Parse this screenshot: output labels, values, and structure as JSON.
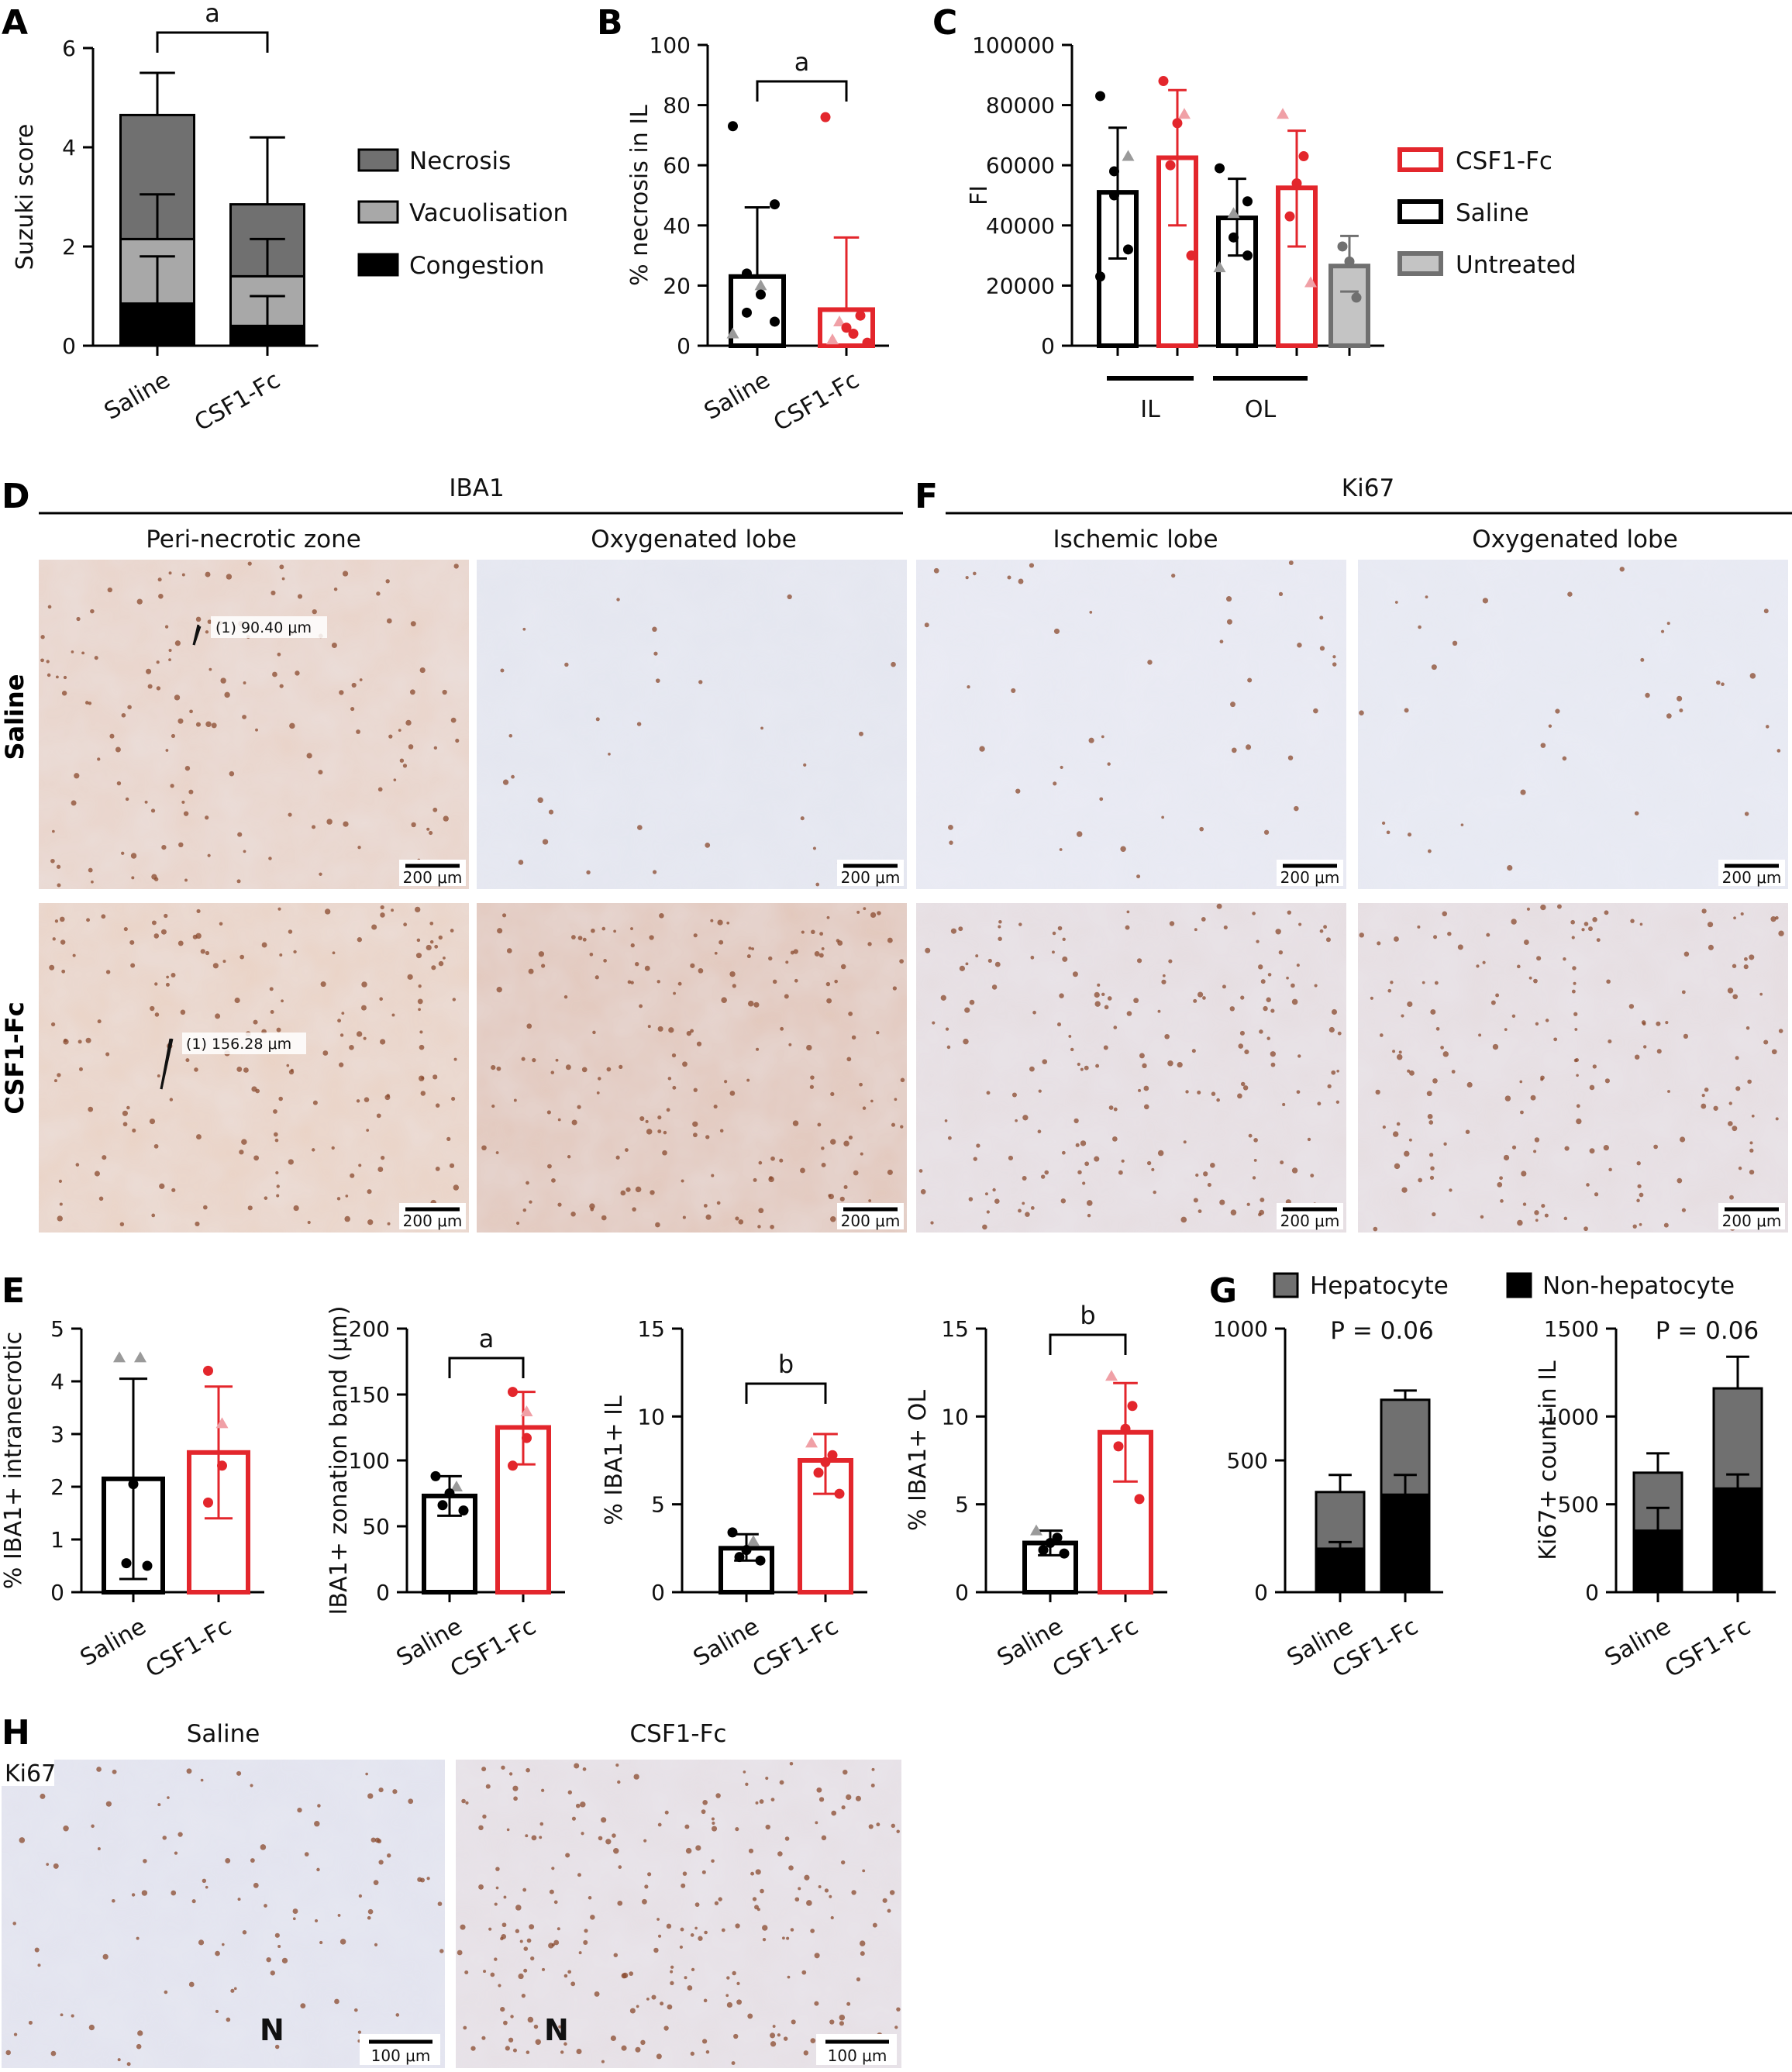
{
  "panel_labels": {
    "A": "A",
    "B": "B",
    "C": "C",
    "D": "D",
    "E": "E",
    "F": "F",
    "G": "G",
    "H": "H"
  },
  "colors": {
    "black": "#000000",
    "red": "#e3262c",
    "dark_gray": "#707070",
    "light_gray": "#a8a8a8",
    "untreated": "#c4c4c4",
    "grey_point": "#9a9a9a",
    "pink_point": "#f0a0a6"
  },
  "panel_d": {
    "title": "IBA1",
    "col_headers": [
      "Peri-necrotic zone",
      "Oxygenated lobe"
    ],
    "row_labels": [
      "Saline",
      "CSF1-Fc"
    ],
    "measurements": [
      "(1) 90.40 μm",
      "(1) 156.28 μm"
    ],
    "scale_bar": "200 μm",
    "stain_levels": [
      [
        0.55,
        0.12
      ],
      [
        0.7,
        0.75
      ]
    ]
  },
  "panel_f": {
    "title": "Ki67",
    "col_headers": [
      "Ischemic lobe",
      "Oxygenated lobe"
    ],
    "scale_bar": "200 μm",
    "stain_levels": [
      [
        0.18,
        0.14
      ],
      [
        0.75,
        0.72
      ]
    ]
  },
  "panel_h": {
    "col_headers": [
      "Saline",
      "CSF1-Fc"
    ],
    "stain_label": "Ki67",
    "necrosis_marker": "N",
    "scale_bar": "100 μm",
    "stain_levels": [
      0.25,
      0.6
    ]
  },
  "chart_data": [
    {
      "id": "A",
      "type": "bar",
      "stacked": true,
      "categories": [
        "Saline",
        "CSF1-Fc"
      ],
      "ylabel": "Suzuki score",
      "ylim": [
        0,
        6
      ],
      "yticks": [
        0,
        2,
        4,
        6
      ],
      "series": [
        {
          "name": "Congestion",
          "color": "#000000",
          "values": [
            0.85,
            0.4
          ],
          "err": [
            1.8,
            1.0
          ]
        },
        {
          "name": "Vacuolisation",
          "color": "#a8a8a8",
          "values": [
            1.3,
            1.0
          ],
          "err": [
            3.05,
            2.15
          ]
        },
        {
          "name": "Necrosis",
          "color": "#707070",
          "values": [
            2.5,
            1.45
          ],
          "err": [
            5.5,
            4.2
          ]
        }
      ],
      "legend_order": [
        "Necrosis",
        "Vacuolisation",
        "Congestion"
      ],
      "significance": [
        {
          "label": "a",
          "from": 0,
          "to": 1
        }
      ]
    },
    {
      "id": "B",
      "type": "bar",
      "categories": [
        "Saline",
        "CSF1-Fc"
      ],
      "ylabel": "% necrosis in IL",
      "ylim": [
        0,
        100
      ],
      "yticks": [
        0,
        20,
        40,
        60,
        80,
        100
      ],
      "values": [
        23,
        12
      ],
      "err_upper": [
        46,
        36
      ],
      "edge_colors": [
        "#000000",
        "#e3262c"
      ],
      "points": [
        [
          {
            "y": 73,
            "c": "#000000"
          },
          {
            "y": 47,
            "c": "#000000"
          },
          {
            "y": 24,
            "c": "#000000"
          },
          {
            "y": 20,
            "c": "#9a9a9a",
            "shape": "tri"
          },
          {
            "y": 17,
            "c": "#000000"
          },
          {
            "y": 11,
            "c": "#000000"
          },
          {
            "y": 8,
            "c": "#000000"
          },
          {
            "y": 4,
            "c": "#9a9a9a",
            "shape": "tri"
          }
        ],
        [
          {
            "y": 76,
            "c": "#e3262c"
          },
          {
            "y": 10,
            "c": "#e3262c"
          },
          {
            "y": 8,
            "c": "#f0a0a6",
            "shape": "tri"
          },
          {
            "y": 6,
            "c": "#e3262c"
          },
          {
            "y": 4,
            "c": "#e3262c"
          },
          {
            "y": 2,
            "c": "#f0a0a6",
            "shape": "tri"
          },
          {
            "y": 1,
            "c": "#e3262c"
          }
        ]
      ],
      "significance": [
        {
          "label": "a",
          "from": 0,
          "to": 1
        }
      ]
    },
    {
      "id": "C",
      "type": "bar",
      "categories": [
        "IL Saline",
        "IL CSF1-Fc",
        "OL Saline",
        "OL CSF1-Fc",
        "Untreated"
      ],
      "group_labels": [
        "IL",
        "OL"
      ],
      "ylabel": "FI",
      "ylim": [
        0,
        100000
      ],
      "yticks": [
        0,
        20000,
        40000,
        60000,
        80000,
        100000
      ],
      "values": [
        51000,
        62500,
        42500,
        52500,
        26500
      ],
      "err": [
        [
          29000,
          72500
        ],
        [
          40000,
          85000
        ],
        [
          30000,
          55500
        ],
        [
          33000,
          71500
        ],
        [
          18000,
          36500
        ]
      ],
      "edge_colors": [
        "#000000",
        "#e3262c",
        "#000000",
        "#e3262c",
        "#707070"
      ],
      "fill_colors": [
        "#ffffff",
        "#ffffff",
        "#ffffff",
        "#ffffff",
        "#c4c4c4"
      ],
      "legend": [
        {
          "name": "CSF1-Fc",
          "edge": "#e3262c",
          "fill": "#ffffff"
        },
        {
          "name": "Saline",
          "edge": "#000000",
          "fill": "#ffffff"
        },
        {
          "name": "Untreated",
          "edge": "#707070",
          "fill": "#c4c4c4"
        }
      ],
      "points": [
        [
          {
            "y": 83000,
            "c": "#000000"
          },
          {
            "y": 63000,
            "c": "#9a9a9a",
            "shape": "tri"
          },
          {
            "y": 58000,
            "c": "#000000"
          },
          {
            "y": 50000,
            "c": "#000000"
          },
          {
            "y": 32000,
            "c": "#000000"
          },
          {
            "y": 23000,
            "c": "#000000"
          }
        ],
        [
          {
            "y": 88000,
            "c": "#e3262c"
          },
          {
            "y": 77000,
            "c": "#f0a0a6",
            "shape": "tri"
          },
          {
            "y": 74000,
            "c": "#e3262c"
          },
          {
            "y": 60000,
            "c": "#e3262c"
          },
          {
            "y": 30000,
            "c": "#e3262c"
          }
        ],
        [
          {
            "y": 59000,
            "c": "#000000"
          },
          {
            "y": 48000,
            "c": "#000000"
          },
          {
            "y": 44000,
            "c": "#9a9a9a",
            "shape": "tri"
          },
          {
            "y": 36000,
            "c": "#000000"
          },
          {
            "y": 30000,
            "c": "#000000"
          },
          {
            "y": 26000,
            "c": "#9a9a9a",
            "shape": "tri"
          }
        ],
        [
          {
            "y": 77000,
            "c": "#f0a0a6",
            "shape": "tri"
          },
          {
            "y": 63000,
            "c": "#e3262c"
          },
          {
            "y": 54000,
            "c": "#e3262c"
          },
          {
            "y": 43000,
            "c": "#e3262c"
          },
          {
            "y": 21000,
            "c": "#f0a0a6",
            "shape": "tri"
          }
        ],
        [
          {
            "y": 33000,
            "c": "#707070"
          },
          {
            "y": 28000,
            "c": "#707070"
          },
          {
            "y": 16000,
            "c": "#707070"
          }
        ]
      ]
    },
    {
      "id": "E1",
      "type": "bar",
      "categories": [
        "Saline",
        "CSF1-Fc"
      ],
      "ylabel": "% IBA1+ intranecrotic",
      "ylim": [
        0,
        5
      ],
      "yticks": [
        0,
        1,
        2,
        3,
        4,
        5
      ],
      "values": [
        2.15,
        2.65
      ],
      "err": [
        [
          0.25,
          4.05
        ],
        [
          1.4,
          3.9
        ]
      ],
      "edge_colors": [
        "#000000",
        "#e3262c"
      ],
      "points": [
        [
          {
            "y": 4.45,
            "c": "#9a9a9a",
            "shape": "tri"
          },
          {
            "y": 4.45,
            "c": "#9a9a9a",
            "shape": "tri"
          },
          {
            "y": 2.05,
            "c": "#000000"
          },
          {
            "y": 0.55,
            "c": "#000000"
          },
          {
            "y": 0.5,
            "c": "#000000"
          }
        ],
        [
          {
            "y": 4.2,
            "c": "#e3262c"
          },
          {
            "y": 3.2,
            "c": "#f0a0a6",
            "shape": "tri"
          },
          {
            "y": 2.4,
            "c": "#e3262c"
          },
          {
            "y": 1.7,
            "c": "#e3262c"
          }
        ]
      ]
    },
    {
      "id": "E2",
      "type": "bar",
      "categories": [
        "Saline",
        "CSF1-Fc"
      ],
      "ylabel": "IBA1+ zonation band (μm)",
      "ylim": [
        0,
        200
      ],
      "yticks": [
        0,
        50,
        100,
        150,
        200
      ],
      "values": [
        73,
        125
      ],
      "err": [
        [
          58,
          88
        ],
        [
          97,
          152
        ]
      ],
      "edge_colors": [
        "#000000",
        "#e3262c"
      ],
      "points": [
        [
          {
            "y": 88,
            "c": "#000000"
          },
          {
            "y": 80,
            "c": "#9a9a9a",
            "shape": "tri"
          },
          {
            "y": 75,
            "c": "#000000"
          },
          {
            "y": 66,
            "c": "#000000"
          },
          {
            "y": 62,
            "c": "#000000"
          }
        ],
        [
          {
            "y": 152,
            "c": "#e3262c"
          },
          {
            "y": 137,
            "c": "#f0a0a6",
            "shape": "tri"
          },
          {
            "y": 117,
            "c": "#e3262c"
          },
          {
            "y": 96,
            "c": "#e3262c"
          }
        ]
      ],
      "significance": [
        {
          "label": "a",
          "from": 0,
          "to": 1
        }
      ]
    },
    {
      "id": "E3",
      "type": "bar",
      "categories": [
        "Saline",
        "CSF1-Fc"
      ],
      "ylabel": "% IBA1+ IL",
      "ylim": [
        0,
        15
      ],
      "yticks": [
        0,
        5,
        10,
        15
      ],
      "values": [
        2.5,
        7.5
      ],
      "err": [
        [
          1.8,
          3.3
        ],
        [
          5.6,
          9.0
        ]
      ],
      "edge_colors": [
        "#000000",
        "#e3262c"
      ],
      "points": [
        [
          {
            "y": 3.4,
            "c": "#000000"
          },
          {
            "y": 2.9,
            "c": "#9a9a9a",
            "shape": "tri"
          },
          {
            "y": 2.4,
            "c": "#000000"
          },
          {
            "y": 2.0,
            "c": "#000000"
          },
          {
            "y": 1.8,
            "c": "#000000"
          }
        ],
        [
          {
            "y": 8.5,
            "c": "#f0a0a6",
            "shape": "tri"
          },
          {
            "y": 7.8,
            "c": "#e3262c"
          },
          {
            "y": 7.4,
            "c": "#e3262c"
          },
          {
            "y": 6.8,
            "c": "#e3262c"
          },
          {
            "y": 5.6,
            "c": "#e3262c"
          }
        ]
      ],
      "significance": [
        {
          "label": "b",
          "from": 0,
          "to": 1
        }
      ]
    },
    {
      "id": "E4",
      "type": "bar",
      "categories": [
        "Saline",
        "CSF1-Fc"
      ],
      "ylabel": "% IBA1+ OL",
      "ylim": [
        0,
        15
      ],
      "yticks": [
        0,
        5,
        10,
        15
      ],
      "values": [
        2.8,
        9.1
      ],
      "err": [
        [
          2.1,
          3.5
        ],
        [
          6.3,
          11.9
        ]
      ],
      "edge_colors": [
        "#000000",
        "#e3262c"
      ],
      "points": [
        [
          {
            "y": 3.5,
            "c": "#9a9a9a",
            "shape": "tri"
          },
          {
            "y": 3.1,
            "c": "#000000"
          },
          {
            "y": 2.8,
            "c": "#000000"
          },
          {
            "y": 2.4,
            "c": "#000000"
          },
          {
            "y": 2.2,
            "c": "#000000"
          }
        ],
        [
          {
            "y": 12.3,
            "c": "#f0a0a6",
            "shape": "tri"
          },
          {
            "y": 10.6,
            "c": "#e3262c"
          },
          {
            "y": 9.3,
            "c": "#e3262c"
          },
          {
            "y": 8.3,
            "c": "#e3262c"
          },
          {
            "y": 5.3,
            "c": "#e3262c"
          }
        ]
      ],
      "significance": [
        {
          "label": "b",
          "from": 0,
          "to": 1
        }
      ]
    },
    {
      "id": "G1",
      "type": "bar",
      "stacked": true,
      "categories": [
        "Saline",
        "CSF1-Fc"
      ],
      "ylabel": "",
      "ylim": [
        0,
        1000
      ],
      "yticks": [
        0,
        500,
        1000
      ],
      "series": [
        {
          "name": "Non-hepatocyte",
          "color": "#000000",
          "values": [
            165,
            370
          ],
          "err": [
            190,
            445
          ]
        },
        {
          "name": "Hepatocyte",
          "color": "#707070",
          "values": [
            215,
            360
          ],
          "err": [
            445,
            765
          ]
        }
      ],
      "annotation": "P = 0.06"
    },
    {
      "id": "G2",
      "type": "bar",
      "stacked": true,
      "categories": [
        "Saline",
        "CSF1-Fc"
      ],
      "ylabel": "Ki67+ count in IL",
      "ylim": [
        0,
        1500
      ],
      "yticks": [
        0,
        500,
        1000,
        1500
      ],
      "series": [
        {
          "name": "Non-hepatocyte",
          "color": "#000000",
          "values": [
            350,
            590
          ],
          "err": [
            480,
            670
          ]
        },
        {
          "name": "Hepatocyte",
          "color": "#707070",
          "values": [
            330,
            570
          ],
          "err": [
            790,
            1340
          ]
        }
      ],
      "annotation": "P = 0.06"
    }
  ],
  "panel_g_legend": [
    "Hepatocyte",
    "Non-hepatocyte"
  ]
}
